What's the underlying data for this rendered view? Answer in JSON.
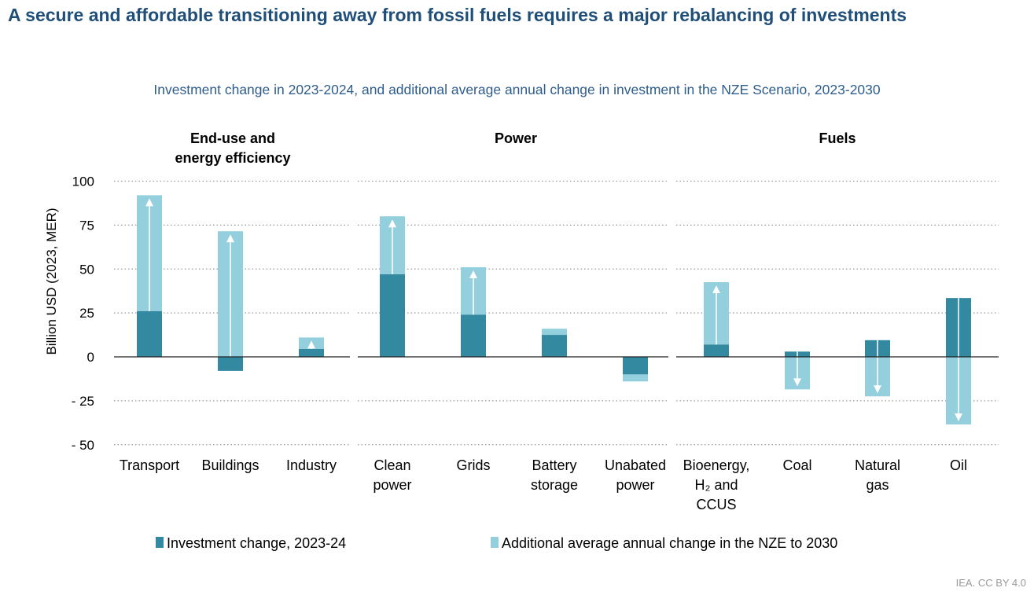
{
  "title": "A secure and affordable transitioning away from fossil fuels requires a major rebalancing of investments",
  "subtitle": "Investment change in 2023-2024, and additional average annual change in investment in the NZE Scenario, 2023-2030",
  "source": "IEA. CC BY 4.0",
  "colors": {
    "investment": "#338aa0",
    "nze": "#93cfdd"
  },
  "chart_data": {
    "type": "bar",
    "stacked": true,
    "ylabel": "Billion USD (2023, MER)",
    "ylim": [
      -50,
      100
    ],
    "yticks": [
      100,
      75,
      50,
      25,
      0,
      -25,
      -50
    ],
    "ytick_labels": [
      "100",
      "75",
      "50",
      "25",
      "0",
      "- 25",
      "- 50"
    ],
    "grid": true,
    "legend_position": "bottom",
    "groups": [
      {
        "name": "End-use and energy efficiency",
        "name_lines": [
          "End-use and",
          "energy efficiency"
        ],
        "categories": [
          0,
          1,
          2
        ]
      },
      {
        "name": "Power",
        "name_lines": [
          "Power"
        ],
        "categories": [
          3,
          4,
          5,
          6
        ]
      },
      {
        "name": "Fuels",
        "name_lines": [
          "Fuels"
        ],
        "categories": [
          7,
          8,
          9,
          10
        ]
      }
    ],
    "categories": [
      "Transport",
      "Buildings",
      "Industry",
      "Clean power",
      "Grids",
      "Battery storage",
      "Unabated power",
      "Bioenergy, H2 and CCUS",
      "Coal",
      "Natural gas",
      "Oil"
    ],
    "category_lines": [
      [
        "Transport"
      ],
      [
        "Buildings"
      ],
      [
        "Industry"
      ],
      [
        "Clean",
        "power"
      ],
      [
        "Grids"
      ],
      [
        "Battery",
        "storage"
      ],
      [
        "Unabated",
        "power"
      ],
      [
        "Bioenergy,",
        "H₂ and",
        "CCUS"
      ],
      [
        "Coal"
      ],
      [
        "Natural",
        "gas"
      ],
      [
        "Oil"
      ]
    ],
    "series": [
      {
        "name": "Investment change, 2023-24",
        "values": [
          26,
          -8,
          4.5,
          47,
          24,
          12.5,
          -10,
          7,
          3,
          9.5,
          33.5
        ]
      },
      {
        "name": "Additional average annual change in the NZE to 2030",
        "end_values": [
          92,
          71.5,
          11,
          80,
          51,
          16,
          -14,
          42.5,
          -18.5,
          -22.5,
          -38.5
        ]
      }
    ],
    "arrows": [
      true,
      true,
      true,
      true,
      true,
      false,
      false,
      true,
      true,
      true,
      true
    ]
  }
}
